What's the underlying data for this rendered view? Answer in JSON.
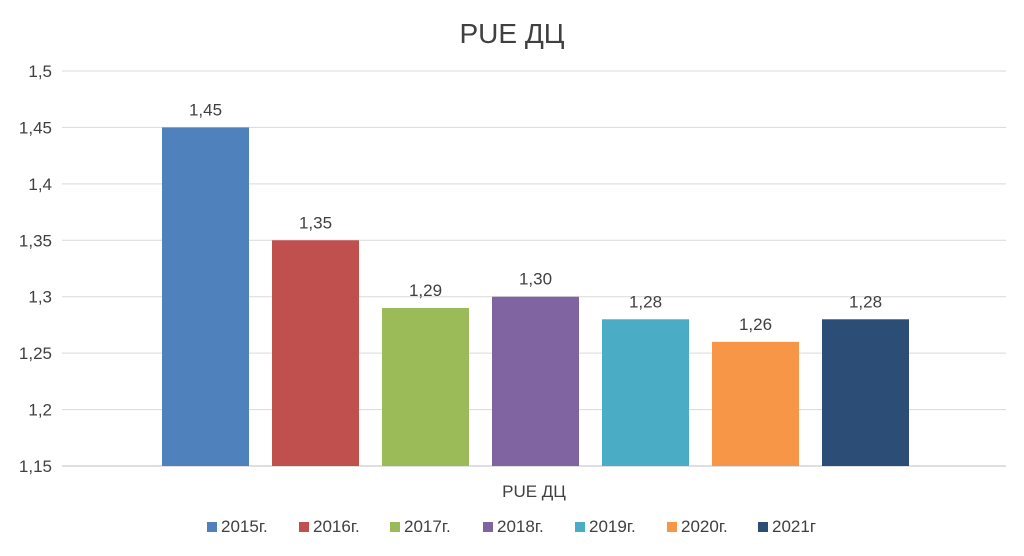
{
  "chart_data": {
    "type": "bar",
    "title": "PUE ДЦ",
    "categories": [
      "PUE ДЦ"
    ],
    "xlabel": "",
    "ylabel": "",
    "ylim": [
      1.15,
      1.5
    ],
    "yticks": [
      "1,15",
      "1,2",
      "1,25",
      "1,3",
      "1,35",
      "1,4",
      "1,45",
      "1,5"
    ],
    "yticks_values": [
      1.15,
      1.2,
      1.25,
      1.3,
      1.35,
      1.4,
      1.45,
      1.5
    ],
    "grid": true,
    "legend_position": "bottom",
    "series": [
      {
        "name": "2015г.",
        "values": [
          1.45
        ],
        "label": "1,45",
        "color": "#4F81BD"
      },
      {
        "name": "2016г.",
        "values": [
          1.35
        ],
        "label": "1,35",
        "color": "#C0504D"
      },
      {
        "name": "2017г.",
        "values": [
          1.29
        ],
        "label": "1,29",
        "color": "#9BBB59"
      },
      {
        "name": "2018г.",
        "values": [
          1.3
        ],
        "label": "1,30",
        "color": "#8064A2"
      },
      {
        "name": "2019г.",
        "values": [
          1.28
        ],
        "label": "1,28",
        "color": "#4BACC6"
      },
      {
        "name": "2020г.",
        "values": [
          1.26
        ],
        "label": "1,26",
        "color": "#F79646"
      },
      {
        "name": "2021г",
        "values": [
          1.28
        ],
        "label": "1,28",
        "color": "#2C4D75"
      }
    ]
  }
}
